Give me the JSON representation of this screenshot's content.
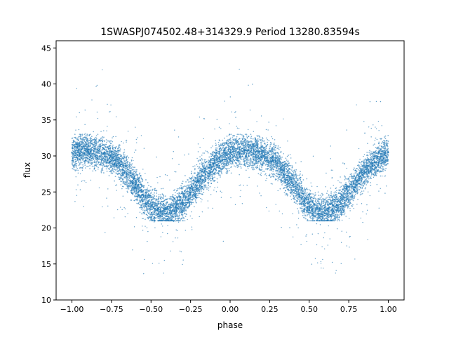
{
  "chart_data": {
    "type": "scatter",
    "title": "1SWASPJ074502.48+314329.9 Period 13280.83594s",
    "xlabel": "phase",
    "ylabel": "flux",
    "xlim": [
      -1.1,
      1.1
    ],
    "ylim": [
      10,
      46
    ],
    "x_ticks": [
      -1.0,
      -0.75,
      -0.5,
      -0.25,
      0.0,
      0.25,
      0.5,
      0.75,
      1.0
    ],
    "x_tick_labels": [
      "−1.00",
      "−0.75",
      "−0.50",
      "−0.25",
      "0.00",
      "0.25",
      "0.50",
      "0.75",
      "1.00"
    ],
    "y_ticks": [
      10,
      15,
      20,
      25,
      30,
      35,
      40,
      45
    ],
    "y_tick_labels": [
      "10",
      "15",
      "20",
      "25",
      "30",
      "35",
      "40",
      "45"
    ],
    "grid": false,
    "legend": "none",
    "point_color": "#1f77b4",
    "series": [
      {
        "x": [
          -1.0,
          -0.9,
          -0.8,
          -0.7,
          -0.6,
          -0.5,
          -0.4,
          -0.3,
          -0.2,
          -0.1,
          0.0,
          0.1,
          0.2,
          0.3,
          0.4,
          0.5,
          0.6,
          0.7,
          0.8,
          0.9,
          1.0
        ],
        "y": [
          30.5,
          30.8,
          30.3,
          29.0,
          26.0,
          23.0,
          22.0,
          23.5,
          26.5,
          29.0,
          30.5,
          30.8,
          30.3,
          29.0,
          26.0,
          23.0,
          22.0,
          23.5,
          26.5,
          29.0,
          30.5
        ]
      }
    ]
  }
}
